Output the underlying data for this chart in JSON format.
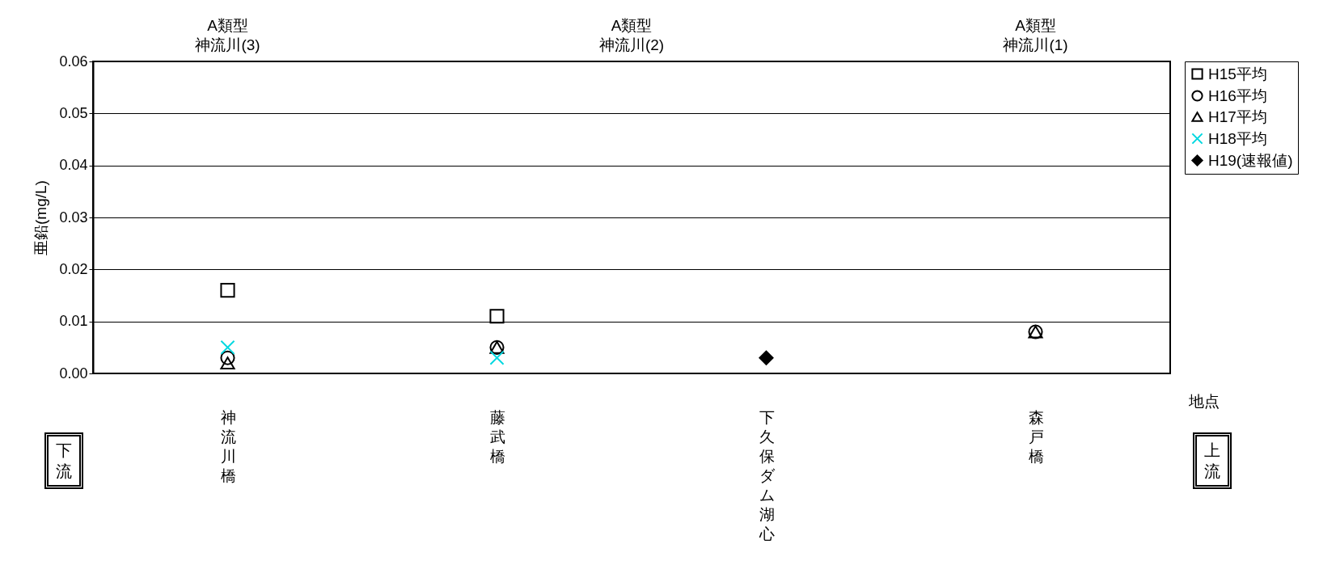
{
  "chart_data": {
    "type": "scatter",
    "xlabel": "地点",
    "ylabel": "亜鉛(mg/L)",
    "categories": [
      "神流川橋",
      "藤武橋",
      "下久保ダム湖心",
      "森戸橋"
    ],
    "series": [
      {
        "name": "H15平均",
        "color": "#000000",
        "marker": "square",
        "values": [
          0.016,
          0.011,
          null,
          null
        ]
      },
      {
        "name": "H16平均",
        "color": "#000000",
        "marker": "circle",
        "values": [
          0.003,
          0.005,
          null,
          0.008
        ]
      },
      {
        "name": "H17平均",
        "color": "#000000",
        "marker": "triangle",
        "values": [
          0.002,
          0.005,
          null,
          0.008
        ]
      },
      {
        "name": "H18平均",
        "color": "#00d8e0",
        "marker": "cross",
        "values": [
          0.005,
          0.003,
          null,
          null
        ]
      },
      {
        "name": "H19(速報値)",
        "color": "#000000",
        "marker": "diamond",
        "values": [
          null,
          null,
          0.003,
          null
        ]
      }
    ],
    "ylim": [
      0,
      0.06
    ],
    "yticks": [
      {
        "value": 0,
        "label": "0.00"
      },
      {
        "value": 0.01,
        "label": "0.01"
      },
      {
        "value": 0.02,
        "label": "0.02"
      },
      {
        "value": 0.03,
        "label": "0.03"
      },
      {
        "value": 0.04,
        "label": "0.04"
      },
      {
        "value": 0.05,
        "label": "0.05"
      },
      {
        "value": 0.06,
        "label": "0.06"
      }
    ],
    "grid": "y",
    "legend": "top right",
    "annotations": [
      "A類型",
      "神流川(3)",
      "A類型",
      "神流川(2)",
      "A類型",
      "神流川(1)",
      "下流",
      "上流"
    ]
  }
}
